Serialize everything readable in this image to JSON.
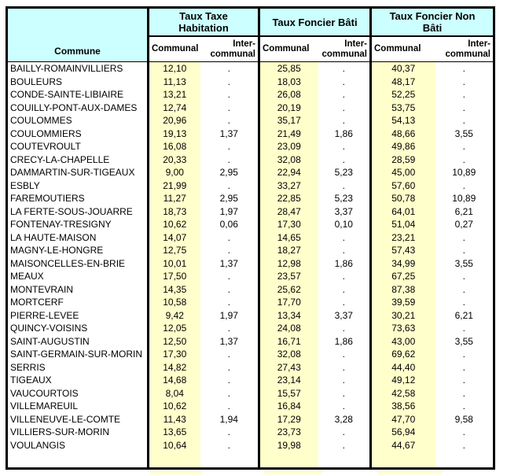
{
  "table": {
    "commune_header": "Commune",
    "groups": [
      {
        "label": "Taux Taxe Habitation"
      },
      {
        "label": "Taux Foncier Bâti"
      },
      {
        "label": "Taux Foncier Non Bâti"
      }
    ],
    "sub_headers": {
      "communal": "Communal",
      "intercommunal": "Inter-communal"
    },
    "empty_value": ".",
    "colors": {
      "header_bg": "#CCFFFF",
      "communal_bg": "#FFFFCC",
      "border": "#000000",
      "text": "#000000"
    },
    "rows": [
      {
        "commune": "BAILLY-ROMAINVILLIERS",
        "values": [
          "12,10",
          ".",
          "25,85",
          ".",
          "40,37",
          "."
        ]
      },
      {
        "commune": "BOULEURS",
        "values": [
          "11,13",
          ".",
          "18,03",
          ".",
          "48,17",
          "."
        ]
      },
      {
        "commune": "CONDE-SAINTE-LIBIAIRE",
        "values": [
          "13,21",
          ".",
          "26,08",
          ".",
          "52,25",
          "."
        ]
      },
      {
        "commune": "COUILLY-PONT-AUX-DAMES",
        "values": [
          "12,74",
          ".",
          "20,19",
          ".",
          "53,75",
          "."
        ]
      },
      {
        "commune": "COULOMMES",
        "values": [
          "20,96",
          ".",
          "35,17",
          ".",
          "54,13",
          "."
        ]
      },
      {
        "commune": "COULOMMIERS",
        "values": [
          "19,13",
          "1,37",
          "21,49",
          "1,86",
          "48,66",
          "3,55"
        ]
      },
      {
        "commune": "COUTEVROULT",
        "values": [
          "16,08",
          ".",
          "23,09",
          ".",
          "49,86",
          "."
        ]
      },
      {
        "commune": "CRECY-LA-CHAPELLE",
        "values": [
          "20,33",
          ".",
          "32,08",
          ".",
          "28,59",
          "."
        ]
      },
      {
        "commune": "DAMMARTIN-SUR-TIGEAUX",
        "values": [
          "9,00",
          "2,95",
          "22,94",
          "5,23",
          "45,00",
          "10,89"
        ]
      },
      {
        "commune": "ESBLY",
        "values": [
          "21,99",
          ".",
          "33,27",
          ".",
          "57,60",
          "."
        ]
      },
      {
        "commune": "FAREMOUTIERS",
        "values": [
          "11,27",
          "2,95",
          "22,85",
          "5,23",
          "50,78",
          "10,89"
        ]
      },
      {
        "commune": "LA FERTE-SOUS-JOUARRE",
        "values": [
          "18,73",
          "1,97",
          "28,47",
          "3,37",
          "64,01",
          "6,21"
        ]
      },
      {
        "commune": "FONTENAY-TRESIGNY",
        "values": [
          "10,62",
          "0,06",
          "17,30",
          "0,10",
          "51,04",
          "0,27"
        ]
      },
      {
        "commune": "LA HAUTE-MAISON",
        "values": [
          "14,07",
          ".",
          "14,65",
          ".",
          "23,21",
          "."
        ]
      },
      {
        "commune": "MAGNY-LE-HONGRE",
        "values": [
          "12,75",
          ".",
          "18,27",
          ".",
          "57,43",
          "."
        ]
      },
      {
        "commune": "MAISONCELLES-EN-BRIE",
        "values": [
          "10,01",
          "1,37",
          "12,98",
          "1,86",
          "34,99",
          "3,55"
        ]
      },
      {
        "commune": "MEAUX",
        "values": [
          "17,50",
          ".",
          "23,57",
          ".",
          "67,25",
          "."
        ]
      },
      {
        "commune": "MONTEVRAIN",
        "values": [
          "14,35",
          ".",
          "25,62",
          ".",
          "87,38",
          "."
        ]
      },
      {
        "commune": "MORTCERF",
        "values": [
          "10,58",
          ".",
          "17,70",
          ".",
          "39,59",
          "."
        ]
      },
      {
        "commune": "PIERRE-LEVEE",
        "values": [
          "9,42",
          "1,97",
          "13,34",
          "3,37",
          "30,21",
          "6,21"
        ]
      },
      {
        "commune": "QUINCY-VOISINS",
        "values": [
          "12,05",
          ".",
          "24,08",
          ".",
          "73,63",
          "."
        ]
      },
      {
        "commune": "SAINT-AUGUSTIN",
        "values": [
          "12,50",
          "1,37",
          "16,71",
          "1,86",
          "43,00",
          "3,55"
        ]
      },
      {
        "commune": "SAINT-GERMAIN-SUR-MORIN",
        "values": [
          "17,30",
          ".",
          "32,08",
          ".",
          "69,62",
          "."
        ]
      },
      {
        "commune": "SERRIS",
        "values": [
          "14,82",
          ".",
          "27,43",
          ".",
          "44,40",
          "."
        ]
      },
      {
        "commune": "TIGEAUX",
        "values": [
          "14,68",
          ".",
          "23,14",
          ".",
          "49,12",
          "."
        ]
      },
      {
        "commune": "VAUCOURTOIS",
        "values": [
          "8,04",
          ".",
          "15,57",
          ".",
          "42,58",
          "."
        ]
      },
      {
        "commune": "VILLEMAREUIL",
        "values": [
          "10,62",
          ".",
          "16,84",
          ".",
          "38,56",
          "."
        ]
      },
      {
        "commune": "VILLENEUVE-LE-COMTE",
        "values": [
          "11,43",
          "1,94",
          "17,29",
          "3,28",
          "47,70",
          "9,58"
        ]
      },
      {
        "commune": "VILLIERS-SUR-MORIN",
        "values": [
          "13,65",
          ".",
          "23,73",
          ".",
          "56,94",
          "."
        ]
      },
      {
        "commune": "VOULANGIS",
        "values": [
          "10,64",
          ".",
          "19,98",
          ".",
          "44,67",
          "."
        ]
      }
    ]
  }
}
